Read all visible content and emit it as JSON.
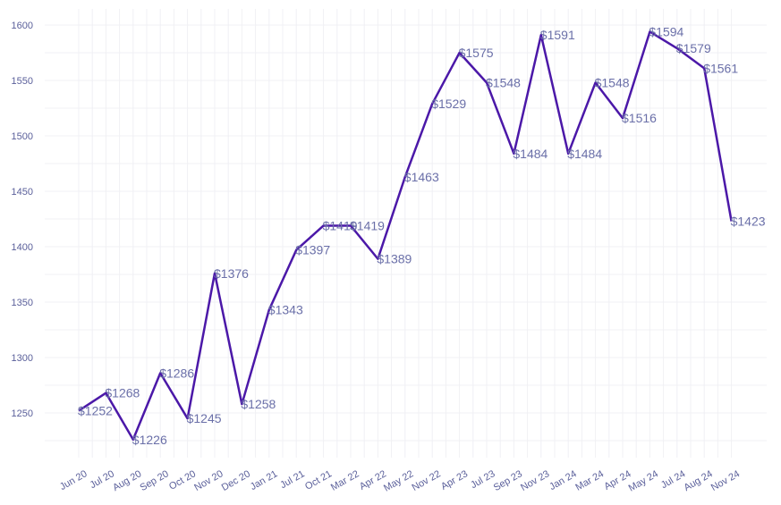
{
  "chart_data": {
    "type": "line",
    "title": "",
    "xlabel": "",
    "ylabel": "",
    "ylim": [
      1200,
      1600
    ],
    "yticks": [
      1250,
      1300,
      1350,
      1400,
      1450,
      1500,
      1550,
      1600
    ],
    "grid": true,
    "line_color": "#4b18a8",
    "label_color": "#6a6fa8",
    "label_prefix": "$",
    "categories": [
      "Jun 20",
      "Jul 20",
      "Aug 20",
      "Sep 20",
      "Oct 20",
      "Nov 20",
      "Dec 20",
      "Jan 21",
      "Jul 21",
      "Oct 21",
      "Mar 22",
      "Apr 22",
      "May 22",
      "Nov 22",
      "Apr 23",
      "Jul 23",
      "Sep 23",
      "Nov 23",
      "Jan 24",
      "Mar 24",
      "Apr 24",
      "May 24",
      "Jul 24",
      "Aug 24",
      "Nov 24"
    ],
    "series": [
      {
        "values": [
          1252,
          1268,
          1226,
          1286,
          1245,
          1376,
          1258,
          1343,
          1397,
          1419,
          1419,
          1389,
          1463,
          1529,
          1575,
          1548,
          1484,
          1591,
          1484,
          1548,
          1516,
          1594,
          1579,
          1561,
          1423
        ]
      }
    ]
  }
}
